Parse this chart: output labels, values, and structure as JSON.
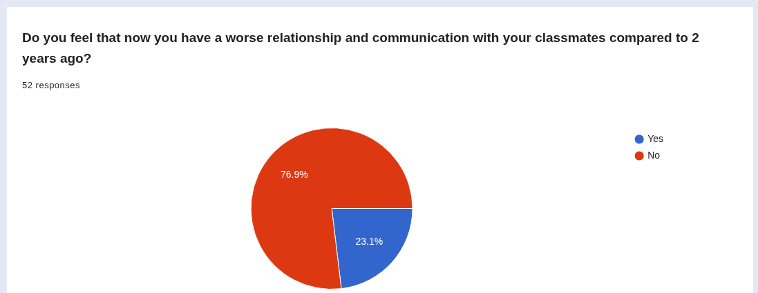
{
  "chart_data": {
    "type": "pie",
    "title": "Do you feel that now you have a worse relationship and communication with your classmates compared to 2 years ago?",
    "subtitle": "52 responses",
    "categories": [
      "Yes",
      "No"
    ],
    "values": [
      23.1,
      76.9
    ],
    "colors": [
      "#3366cc",
      "#dc3912"
    ],
    "legend": "top right",
    "value_labels": [
      "23.1%",
      "76.9%"
    ]
  }
}
